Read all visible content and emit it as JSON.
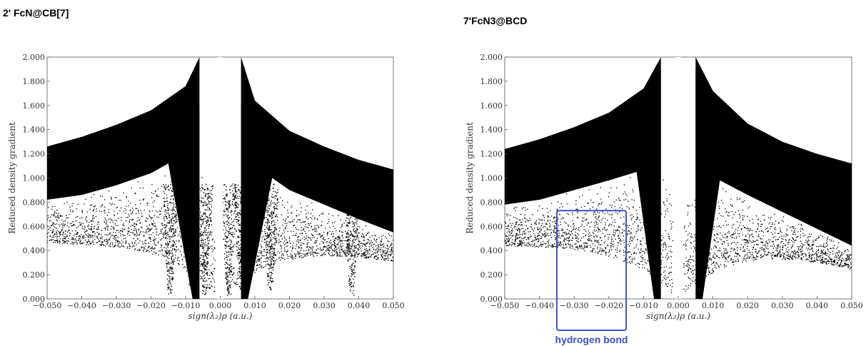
{
  "colors": {
    "points": "#000000",
    "annotation": "#3a50c4",
    "axis": "#555555"
  },
  "chart_data": [
    {
      "type": "scatter",
      "title": "2' FcN@CB[7]",
      "xlabel": "sign(λ₂)ρ (a.u.)",
      "ylabel": "Reduced density gradient",
      "xlim": [
        -0.05,
        0.05
      ],
      "ylim": [
        0.0,
        2.0
      ],
      "grid": false,
      "x_ticks": [
        "−0.050",
        "−0.040",
        "−0.030",
        "−0.020",
        "−0.010",
        "0.000",
        "0.010",
        "0.020",
        "0.030",
        "0.040",
        "0.050"
      ],
      "y_ticks": [
        "0.000",
        "0.200",
        "0.400",
        "0.600",
        "0.800",
        "1.000",
        "1.200",
        "1.400",
        "1.600",
        "1.800",
        "2.000"
      ],
      "series": [
        {
          "description_of_shape": "dense upper band",
          "band_upper": [
            [
              -0.05,
              1.26
            ],
            [
              -0.04,
              1.34
            ],
            [
              -0.03,
              1.44
            ],
            [
              -0.02,
              1.56
            ],
            [
              -0.01,
              1.76
            ],
            [
              -0.006,
              2.0
            ]
          ],
          "band_upper_right": [
            [
              0.006,
              2.0
            ],
            [
              0.01,
              1.64
            ],
            [
              0.02,
              1.39
            ],
            [
              0.03,
              1.26
            ],
            [
              0.04,
              1.15
            ],
            [
              0.05,
              1.07
            ]
          ],
          "band_lower_left": [
            [
              -0.05,
              0.82
            ],
            [
              -0.04,
              0.86
            ],
            [
              -0.03,
              0.94
            ],
            [
              -0.02,
              1.04
            ],
            [
              -0.015,
              1.12
            ]
          ],
          "band_lower_right": [
            [
              0.015,
              1.0
            ],
            [
              0.02,
              0.9
            ],
            [
              0.03,
              0.78
            ],
            [
              0.04,
              0.66
            ],
            [
              0.05,
              0.55
            ]
          ],
          "spikes": [
            {
              "x": -0.0145,
              "min_y": 0.04
            },
            {
              "x": -0.0085,
              "min_y": 0.08
            },
            {
              "x": -0.0045,
              "min_y": 0.02
            },
            {
              "x": 0.0025,
              "min_y": 0.02
            },
            {
              "x": 0.0062,
              "min_y": 0.06
            },
            {
              "x": 0.0145,
              "min_y": 0.05
            },
            {
              "x": 0.038,
              "min_y": 0.02
            }
          ]
        }
      ]
    },
    {
      "type": "scatter",
      "title": "7'FcN3@BCD",
      "xlabel": "sign(λ₂)ρ (a.u.)",
      "ylabel": "Reduced density gradient",
      "xlim": [
        -0.05,
        0.05
      ],
      "ylim": [
        0.0,
        2.0
      ],
      "grid": false,
      "x_ticks": [
        "−0.050",
        "−0.040",
        "−0.030",
        "−0.020",
        "−0.010",
        "0.000",
        "0.010",
        "0.020",
        "0.030",
        "0.040",
        "0.050"
      ],
      "y_ticks": [
        "0.000",
        "0.200",
        "0.400",
        "0.600",
        "0.800",
        "1.000",
        "1.200",
        "1.400",
        "1.600",
        "1.800",
        "2.000"
      ],
      "series": [
        {
          "description_of_shape": "dense upper band",
          "band_upper": [
            [
              -0.05,
              1.24
            ],
            [
              -0.04,
              1.32
            ],
            [
              -0.03,
              1.42
            ],
            [
              -0.02,
              1.54
            ],
            [
              -0.01,
              1.74
            ],
            [
              -0.005,
              2.0
            ]
          ],
          "band_upper_right": [
            [
              0.005,
              2.0
            ],
            [
              0.01,
              1.72
            ],
            [
              0.02,
              1.45
            ],
            [
              0.03,
              1.3
            ],
            [
              0.04,
              1.2
            ],
            [
              0.05,
              1.12
            ]
          ],
          "band_lower_left": [
            [
              -0.05,
              0.78
            ],
            [
              -0.04,
              0.82
            ],
            [
              -0.03,
              0.9
            ],
            [
              -0.02,
              0.98
            ],
            [
              -0.012,
              1.05
            ]
          ],
          "band_lower_right": [
            [
              0.012,
              0.98
            ],
            [
              0.02,
              0.86
            ],
            [
              0.03,
              0.72
            ],
            [
              0.04,
              0.58
            ],
            [
              0.05,
              0.44
            ]
          ]
        }
      ],
      "annotation": {
        "label": "hydrogen bond",
        "x_range": [
          -0.035,
          -0.015
        ],
        "y_range": [
          0.0,
          0.73
        ]
      }
    }
  ]
}
